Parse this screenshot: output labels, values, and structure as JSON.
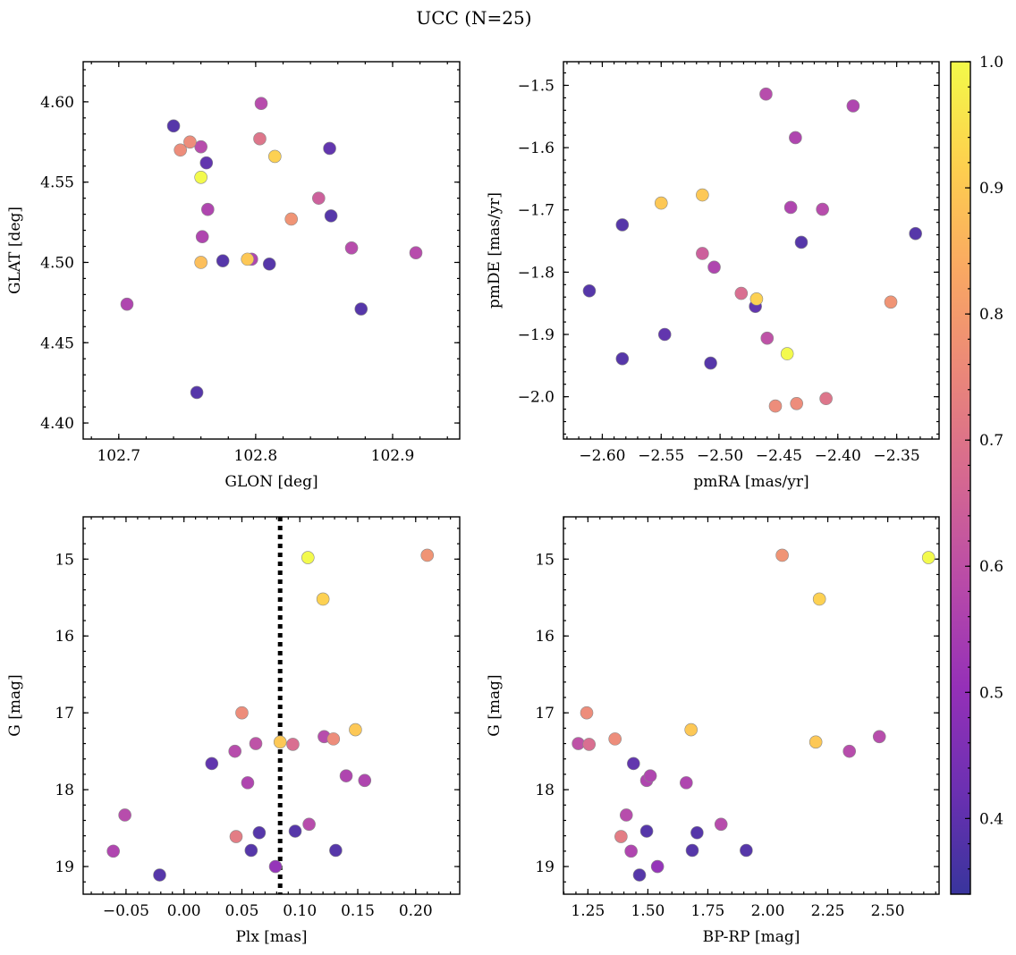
{
  "figure_title": "UCC (N=25)",
  "colorbar": {
    "range": [
      0.34,
      1.0
    ],
    "ticks": [
      0.4,
      0.5,
      0.6,
      0.7,
      0.8,
      0.9,
      1.0
    ],
    "tick_labels": [
      "0.4",
      "0.5",
      "0.6",
      "0.7",
      "0.8",
      "0.9",
      "1.0"
    ],
    "colormap": "plasma"
  },
  "chart_data": [
    {
      "type": "scatter",
      "xlabel": "GLON [deg]",
      "ylabel": "GLAT [deg]",
      "xlim": [
        102.674,
        102.949
      ],
      "ylim": [
        4.39,
        4.625
      ],
      "y_inverted": false,
      "xticks": [
        102.7,
        102.8,
        102.9
      ],
      "xtick_labels": [
        "102.7",
        "102.8",
        "102.9"
      ],
      "yticks": [
        4.4,
        4.45,
        4.5,
        4.55,
        4.6
      ],
      "ytick_labels": [
        "4.40",
        "4.45",
        "4.50",
        "4.55",
        "4.60"
      ],
      "points": [
        {
          "x": 102.706,
          "y": 4.474,
          "c": 0.56
        },
        {
          "x": 102.74,
          "y": 4.585,
          "c": 0.38
        },
        {
          "x": 102.745,
          "y": 4.57,
          "c": 0.76
        },
        {
          "x": 102.752,
          "y": 4.575,
          "c": 0.76
        },
        {
          "x": 102.757,
          "y": 4.419,
          "c": 0.38
        },
        {
          "x": 102.76,
          "y": 4.572,
          "c": 0.58
        },
        {
          "x": 102.76,
          "y": 4.553,
          "c": 1.0
        },
        {
          "x": 102.76,
          "y": 4.5,
          "c": 0.88
        },
        {
          "x": 102.761,
          "y": 4.516,
          "c": 0.56
        },
        {
          "x": 102.764,
          "y": 4.562,
          "c": 0.4
        },
        {
          "x": 102.765,
          "y": 4.533,
          "c": 0.56
        },
        {
          "x": 102.776,
          "y": 4.501,
          "c": 0.38
        },
        {
          "x": 102.794,
          "y": 4.502,
          "c": 0.9
        },
        {
          "x": 102.797,
          "y": 4.502,
          "c": 0.56
        },
        {
          "x": 102.803,
          "y": 4.577,
          "c": 0.7
        },
        {
          "x": 102.804,
          "y": 4.599,
          "c": 0.58
        },
        {
          "x": 102.81,
          "y": 4.499,
          "c": 0.38
        },
        {
          "x": 102.814,
          "y": 4.566,
          "c": 0.92
        },
        {
          "x": 102.826,
          "y": 4.527,
          "c": 0.78
        },
        {
          "x": 102.846,
          "y": 4.54,
          "c": 0.64
        },
        {
          "x": 102.854,
          "y": 4.571,
          "c": 0.4
        },
        {
          "x": 102.855,
          "y": 4.529,
          "c": 0.38
        },
        {
          "x": 102.87,
          "y": 4.509,
          "c": 0.58
        },
        {
          "x": 102.877,
          "y": 4.471,
          "c": 0.38
        },
        {
          "x": 102.917,
          "y": 4.506,
          "c": 0.58
        }
      ]
    },
    {
      "type": "scatter",
      "xlabel": "pmRA [mas/yr]",
      "ylabel": "pmDE [mas/yr]",
      "xlim": [
        -2.633,
        -2.314
      ],
      "ylim": [
        -2.068,
        -1.462
      ],
      "y_inverted": false,
      "xticks": [
        -2.6,
        -2.55,
        -2.5,
        -2.45,
        -2.4,
        -2.35
      ],
      "xtick_labels": [
        "−2.60",
        "−2.55",
        "−2.50",
        "−2.45",
        "−2.40",
        "−2.35"
      ],
      "yticks": [
        -2.0,
        -1.9,
        -1.8,
        -1.7,
        -1.6,
        -1.5
      ],
      "ytick_labels": [
        "−2.0",
        "−1.9",
        "−1.8",
        "−1.7",
        "−1.6",
        "−1.5"
      ],
      "points": [
        {
          "x": -2.611,
          "y": -1.83,
          "c": 0.38
        },
        {
          "x": -2.583,
          "y": -1.724,
          "c": 0.38
        },
        {
          "x": -2.583,
          "y": -1.939,
          "c": 0.38
        },
        {
          "x": -2.55,
          "y": -1.689,
          "c": 0.9
        },
        {
          "x": -2.547,
          "y": -1.9,
          "c": 0.4
        },
        {
          "x": -2.515,
          "y": -1.676,
          "c": 0.9
        },
        {
          "x": -2.515,
          "y": -1.77,
          "c": 0.64
        },
        {
          "x": -2.508,
          "y": -1.946,
          "c": 0.38
        },
        {
          "x": -2.505,
          "y": -1.792,
          "c": 0.56
        },
        {
          "x": -2.482,
          "y": -1.834,
          "c": 0.68
        },
        {
          "x": -2.47,
          "y": -1.855,
          "c": 0.4
        },
        {
          "x": -2.469,
          "y": -1.843,
          "c": 0.92
        },
        {
          "x": -2.461,
          "y": -1.514,
          "c": 0.58
        },
        {
          "x": -2.46,
          "y": -1.906,
          "c": 0.6
        },
        {
          "x": -2.453,
          "y": -2.015,
          "c": 0.76
        },
        {
          "x": -2.443,
          "y": -1.931,
          "c": 1.0
        },
        {
          "x": -2.44,
          "y": -1.696,
          "c": 0.56
        },
        {
          "x": -2.436,
          "y": -1.584,
          "c": 0.56
        },
        {
          "x": -2.435,
          "y": -2.011,
          "c": 0.76
        },
        {
          "x": -2.431,
          "y": -1.752,
          "c": 0.38
        },
        {
          "x": -2.413,
          "y": -1.699,
          "c": 0.58
        },
        {
          "x": -2.41,
          "y": -2.003,
          "c": 0.7
        },
        {
          "x": -2.387,
          "y": -1.533,
          "c": 0.56
        },
        {
          "x": -2.355,
          "y": -1.848,
          "c": 0.78
        },
        {
          "x": -2.334,
          "y": -1.738,
          "c": 0.38
        }
      ]
    },
    {
      "type": "scatter",
      "xlabel": "Plx [mas]",
      "ylabel": "G [mag]",
      "xlim": [
        -0.087,
        0.238
      ],
      "ylim": [
        19.36,
        14.45
      ],
      "y_inverted": true,
      "xticks": [
        -0.05,
        0.0,
        0.05,
        0.1,
        0.15,
        0.2
      ],
      "xtick_labels": [
        "−0.05",
        "0.00",
        "0.05",
        "0.10",
        "0.15",
        "0.20"
      ],
      "yticks": [
        15,
        16,
        17,
        18,
        19
      ],
      "ytick_labels": [
        "15",
        "16",
        "17",
        "18",
        "19"
      ],
      "vline": {
        "x": 0.083,
        "style": "dotted"
      },
      "points": [
        {
          "x": -0.061,
          "y": 18.8,
          "c": 0.56
        },
        {
          "x": -0.051,
          "y": 18.33,
          "c": 0.58
        },
        {
          "x": -0.021,
          "y": 19.11,
          "c": 0.38
        },
        {
          "x": 0.024,
          "y": 17.66,
          "c": 0.4
        },
        {
          "x": 0.044,
          "y": 17.5,
          "c": 0.58
        },
        {
          "x": 0.045,
          "y": 18.61,
          "c": 0.72
        },
        {
          "x": 0.05,
          "y": 17.0,
          "c": 0.76
        },
        {
          "x": 0.055,
          "y": 17.91,
          "c": 0.56
        },
        {
          "x": 0.058,
          "y": 18.79,
          "c": 0.38
        },
        {
          "x": 0.062,
          "y": 17.4,
          "c": 0.6
        },
        {
          "x": 0.065,
          "y": 18.56,
          "c": 0.38
        },
        {
          "x": 0.079,
          "y": 19.0,
          "c": 0.5
        },
        {
          "x": 0.083,
          "y": 17.38,
          "c": 0.9
        },
        {
          "x": 0.094,
          "y": 17.41,
          "c": 0.68
        },
        {
          "x": 0.096,
          "y": 18.54,
          "c": 0.38
        },
        {
          "x": 0.107,
          "y": 14.98,
          "c": 1.0
        },
        {
          "x": 0.108,
          "y": 18.45,
          "c": 0.58
        },
        {
          "x": 0.12,
          "y": 15.52,
          "c": 0.92
        },
        {
          "x": 0.121,
          "y": 17.31,
          "c": 0.58
        },
        {
          "x": 0.129,
          "y": 17.34,
          "c": 0.76
        },
        {
          "x": 0.131,
          "y": 18.79,
          "c": 0.38
        },
        {
          "x": 0.14,
          "y": 17.82,
          "c": 0.56
        },
        {
          "x": 0.148,
          "y": 17.22,
          "c": 0.9
        },
        {
          "x": 0.156,
          "y": 17.88,
          "c": 0.56
        },
        {
          "x": 0.21,
          "y": 14.95,
          "c": 0.78
        }
      ]
    },
    {
      "type": "scatter",
      "xlabel": "BP-RP [mag]",
      "ylabel": "G [mag]",
      "xlim": [
        1.148,
        2.714
      ],
      "ylim": [
        19.36,
        14.45
      ],
      "y_inverted": true,
      "xticks": [
        1.25,
        1.5,
        1.75,
        2.0,
        2.25,
        2.5
      ],
      "xtick_labels": [
        "1.25",
        "1.50",
        "1.75",
        "2.00",
        "2.25",
        "2.50"
      ],
      "yticks": [
        15,
        16,
        17,
        18,
        19
      ],
      "ytick_labels": [
        "15",
        "16",
        "17",
        "18",
        "19"
      ],
      "points": [
        {
          "x": 1.21,
          "y": 17.4,
          "c": 0.6
        },
        {
          "x": 1.245,
          "y": 17.0,
          "c": 0.76
        },
        {
          "x": 1.255,
          "y": 17.41,
          "c": 0.68
        },
        {
          "x": 1.363,
          "y": 17.34,
          "c": 0.76
        },
        {
          "x": 1.388,
          "y": 18.61,
          "c": 0.72
        },
        {
          "x": 1.41,
          "y": 18.33,
          "c": 0.58
        },
        {
          "x": 1.43,
          "y": 18.8,
          "c": 0.56
        },
        {
          "x": 1.44,
          "y": 17.66,
          "c": 0.4
        },
        {
          "x": 1.465,
          "y": 19.11,
          "c": 0.38
        },
        {
          "x": 1.495,
          "y": 18.54,
          "c": 0.38
        },
        {
          "x": 1.495,
          "y": 17.88,
          "c": 0.56
        },
        {
          "x": 1.51,
          "y": 17.82,
          "c": 0.56
        },
        {
          "x": 1.54,
          "y": 19.0,
          "c": 0.5
        },
        {
          "x": 1.66,
          "y": 17.91,
          "c": 0.56
        },
        {
          "x": 1.68,
          "y": 17.22,
          "c": 0.9
        },
        {
          "x": 1.685,
          "y": 18.79,
          "c": 0.38
        },
        {
          "x": 1.705,
          "y": 18.56,
          "c": 0.38
        },
        {
          "x": 1.805,
          "y": 18.45,
          "c": 0.58
        },
        {
          "x": 1.91,
          "y": 18.79,
          "c": 0.38
        },
        {
          "x": 2.06,
          "y": 14.95,
          "c": 0.78
        },
        {
          "x": 2.2,
          "y": 17.38,
          "c": 0.9
        },
        {
          "x": 2.215,
          "y": 15.52,
          "c": 0.92
        },
        {
          "x": 2.34,
          "y": 17.5,
          "c": 0.58
        },
        {
          "x": 2.465,
          "y": 17.31,
          "c": 0.58
        },
        {
          "x": 2.67,
          "y": 14.98,
          "c": 1.0
        }
      ]
    }
  ]
}
